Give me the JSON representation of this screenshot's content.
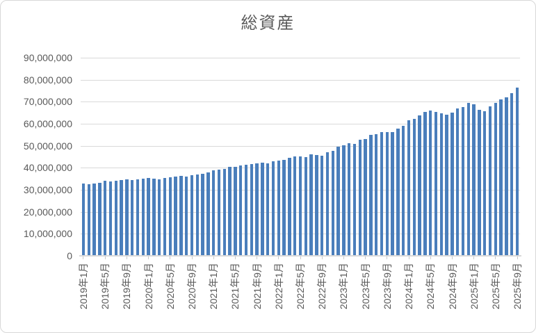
{
  "chart_data": {
    "type": "bar",
    "title": "総資産",
    "categories": [
      "2019年1月",
      "2019年2月",
      "2019年3月",
      "2019年4月",
      "2019年5月",
      "2019年6月",
      "2019年7月",
      "2019年8月",
      "2019年9月",
      "2019年10月",
      "2019年11月",
      "2019年12月",
      "2020年1月",
      "2020年2月",
      "2020年3月",
      "2020年4月",
      "2020年5月",
      "2020年6月",
      "2020年7月",
      "2020年8月",
      "2020年9月",
      "2020年10月",
      "2020年11月",
      "2020年12月",
      "2021年1月",
      "2021年2月",
      "2021年3月",
      "2021年4月",
      "2021年5月",
      "2021年6月",
      "2021年7月",
      "2021年8月",
      "2021年9月",
      "2021年10月",
      "2021年11月",
      "2021年12月",
      "2022年1月",
      "2022年2月",
      "2022年3月",
      "2022年4月",
      "2022年5月",
      "2022年6月",
      "2022年7月",
      "2022年8月",
      "2022年9月",
      "2022年10月",
      "2022年11月",
      "2022年12月",
      "2023年1月",
      "2023年2月",
      "2023年3月",
      "2023年4月",
      "2023年5月",
      "2023年6月",
      "2023年7月",
      "2023年8月",
      "2023年9月",
      "2023年10月",
      "2023年11月",
      "2023年12月",
      "2024年1月",
      "2024年2月",
      "2024年3月",
      "2024年4月",
      "2024年5月",
      "2024年6月",
      "2024年7月",
      "2024年8月",
      "2024年9月",
      "2024年10月",
      "2024年11月",
      "2024年12月",
      "2025年1月",
      "2025年2月",
      "2025年3月",
      "2025年4月",
      "2025年5月",
      "2025年6月",
      "2025年7月",
      "2025年8月",
      "2025年9月"
    ],
    "values": [
      32700000,
      32500000,
      32800000,
      33300000,
      34000000,
      33700000,
      34100000,
      34300000,
      34600000,
      34300000,
      34800000,
      35100000,
      35400000,
      35200000,
      34800000,
      35300000,
      35600000,
      35900000,
      36300000,
      36100000,
      36600000,
      36800000,
      37400000,
      37900000,
      38700000,
      39200000,
      39500000,
      40500000,
      40300000,
      41100000,
      41300000,
      41600000,
      41900000,
      42300000,
      41900000,
      42800000,
      43200000,
      43500000,
      44500000,
      45300000,
      45100000,
      45000000,
      46000000,
      45800000,
      45600000,
      47000000,
      47600000,
      49500000,
      50300000,
      51100000,
      50700000,
      52600000,
      53200000,
      55000000,
      55300000,
      56300000,
      56300000,
      56100000,
      57900000,
      58900000,
      61500000,
      62300000,
      63700000,
      65300000,
      66100000,
      65500000,
      64700000,
      64200000,
      65100000,
      66800000,
      67600000,
      69500000,
      68800000,
      66300000,
      65600000,
      68000000,
      69500000,
      71000000,
      72000000,
      74000000,
      76300000
    ],
    "ylim": [
      0,
      90000000
    ],
    "y_ticks": [
      0,
      10000000,
      20000000,
      30000000,
      40000000,
      50000000,
      60000000,
      70000000,
      80000000,
      90000000
    ],
    "y_tick_labels": [
      "0",
      "10,000,000",
      "20,000,000",
      "30,000,000",
      "40,000,000",
      "50,000,000",
      "60,000,000",
      "70,000,000",
      "80,000,000",
      "90,000,000"
    ],
    "x_tick_interval": 4,
    "xlabel": "",
    "ylabel": "",
    "legend": "none",
    "grid": "horizontal",
    "bar_color": "#4A7EBB",
    "grid_color": "#D9D9D9",
    "axis_color": "#D9D9D9",
    "text_color": "#595959"
  }
}
